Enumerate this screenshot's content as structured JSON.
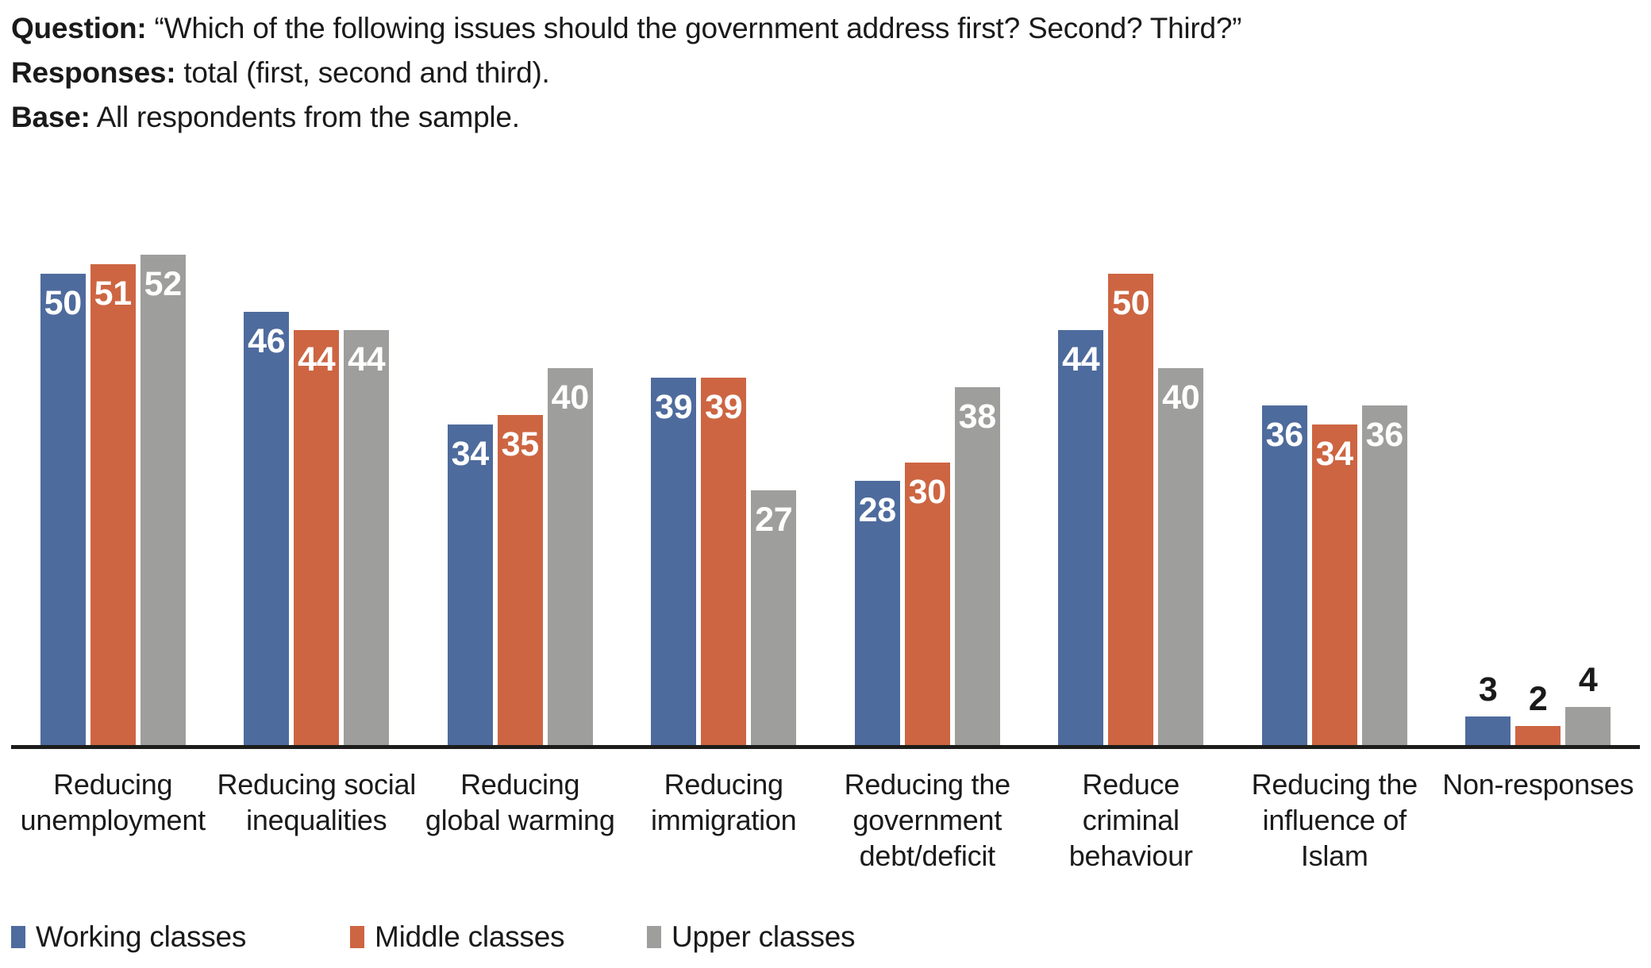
{
  "header": {
    "lines": [
      {
        "label": "Question:",
        "text": " “Which of the following issues should the government address first? Second? Third?”"
      },
      {
        "label": "Responses:",
        "text": " total (first, second and third)."
      },
      {
        "label": "Base:",
        "text": " All respondents from the sample."
      }
    ]
  },
  "chart_data": {
    "type": "bar",
    "categories": [
      "Reducing\nunemployment",
      "Reducing social\ninequalities",
      "Reducing\nglobal warming",
      "Reducing\nimmigration",
      "Reducing the\ngovernment\ndebt/deficit",
      "Reduce\ncriminal\nbehaviour",
      "Reducing the\ninfluence of\nIslam",
      "Non-responses"
    ],
    "series": [
      {
        "name": "Working classes",
        "color": "#4e6b9d",
        "values": [
          50,
          46,
          34,
          39,
          28,
          44,
          36,
          3
        ]
      },
      {
        "name": "Middle classes",
        "color": "#cd6542",
        "values": [
          51,
          44,
          35,
          39,
          30,
          50,
          34,
          2
        ]
      },
      {
        "name": "Upper classes",
        "color": "#9e9e9c",
        "values": [
          52,
          44,
          40,
          27,
          38,
          40,
          36,
          4
        ]
      }
    ],
    "value_labels": "on",
    "ylim": [
      0,
      60
    ],
    "grid": "off",
    "legend_position": "bottom",
    "axis_color": "#1d1d1b",
    "value_label_color_inside": "#ffffff",
    "value_label_color_outside": "#1a1a1a"
  }
}
